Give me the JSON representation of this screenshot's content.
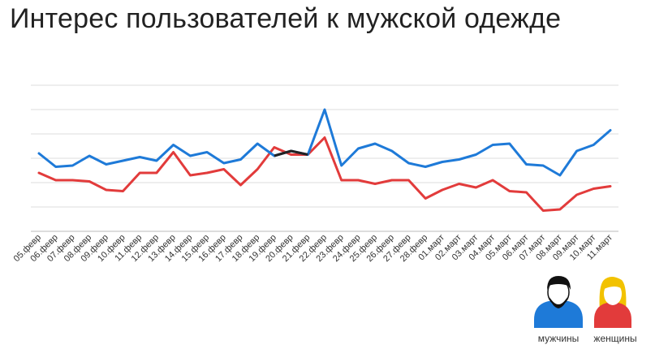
{
  "title": "Интерес пользователей к мужской одежде",
  "colors": {
    "men": "#1e7ad8",
    "women": "#e23b3b",
    "overlap": "#222222",
    "grid": "#dddddd",
    "hair_women": "#f2c200",
    "skin": "#ffffff"
  },
  "chart_data": {
    "type": "line",
    "title": "Интерес пользователей к мужской одежде",
    "xlabel": "",
    "ylabel": "",
    "ylim": [
      0,
      6
    ],
    "grid": true,
    "y_axis_labels_shown": false,
    "legend": "bottom-right",
    "categories": [
      "05.февр",
      "06.февр",
      "07.февр",
      "08.февр",
      "09.февр",
      "10.февр",
      "11.февр",
      "12.февр",
      "13.февр",
      "14.февр",
      "15.февр",
      "16.февр",
      "17.февр",
      "18.февр",
      "19.февр",
      "20.февр",
      "21.февр",
      "22.февр",
      "23.февр",
      "24.февр",
      "25.февр",
      "26.февр",
      "27.февр",
      "28.февр",
      "01.март",
      "02.март",
      "03.март",
      "04.март",
      "05.март",
      "06.март",
      "07.март",
      "08.март",
      "09.март",
      "10.март",
      "11.март"
    ],
    "series": [
      {
        "name": "мужчины",
        "icon": "man-icon",
        "values": [
          3.2,
          2.65,
          2.7,
          3.1,
          2.75,
          2.9,
          3.05,
          2.9,
          3.55,
          3.1,
          3.25,
          2.8,
          2.95,
          3.6,
          3.1,
          3.3,
          3.15,
          5.0,
          2.7,
          3.4,
          3.6,
          3.3,
          2.8,
          2.65,
          2.85,
          2.95,
          3.15,
          3.55,
          3.6,
          2.75,
          2.7,
          2.3,
          3.3,
          3.55,
          4.15
        ]
      },
      {
        "name": "женщины",
        "icon": "woman-icon",
        "values": [
          2.4,
          2.1,
          2.1,
          2.05,
          1.7,
          1.65,
          2.4,
          2.4,
          3.25,
          2.3,
          2.4,
          2.55,
          1.9,
          2.55,
          3.45,
          3.15,
          3.15,
          3.85,
          2.1,
          2.1,
          1.95,
          2.1,
          2.1,
          1.35,
          1.7,
          1.95,
          1.8,
          2.1,
          1.65,
          1.6,
          0.85,
          0.9,
          1.5,
          1.75,
          1.85
        ]
      }
    ],
    "overlap_segment": {
      "from": "19.февр",
      "to": "21.февр"
    }
  }
}
